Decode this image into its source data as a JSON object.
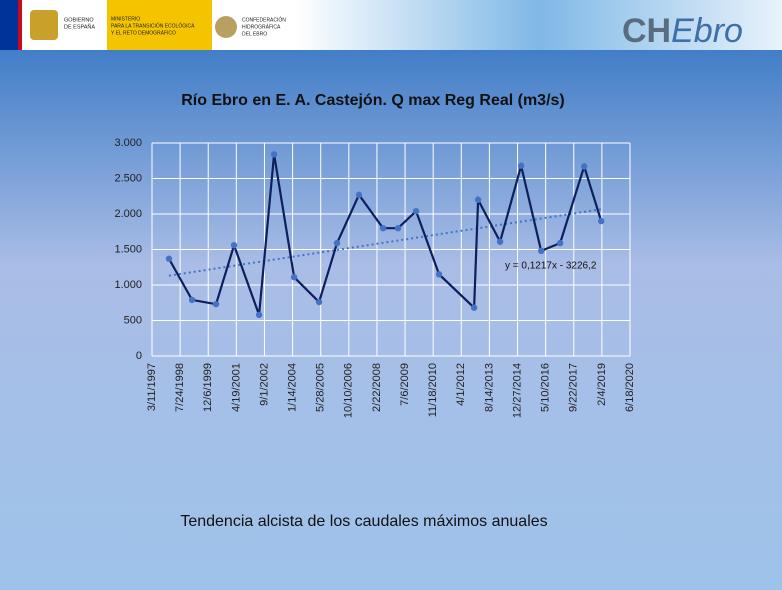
{
  "header": {
    "gov": [
      "GOBIERNO",
      "DE ESPAÑA"
    ],
    "ministry": [
      "MINISTERIO",
      "PARA LA TRANSICIÓN ECOLÓGICA",
      "Y EL RETO DEMOGRÁFICO"
    ],
    "confed": [
      "CONFEDERACIÓN",
      "HIDROGRÁFICA",
      "DEL EBRO"
    ],
    "brand_a": "CH",
    "brand_b": "Ebro"
  },
  "caption": "Tendencia alcista de los caudales máximos anuales",
  "chart_data": {
    "type": "line",
    "title": "Río Ebro en E. A. Castejón. Q max Reg Real (m3/s)",
    "series": [
      {
        "name": "Q max",
        "color": "#0d1f5c",
        "marker_color": "#4472c4",
        "x": [
          35802,
          36212,
          36639,
          36959,
          37404,
          37671,
          38027,
          38471,
          38790,
          39181,
          39609,
          39875,
          40196,
          40605,
          41228,
          41299,
          41690,
          42064,
          42420,
          42758,
          43185,
          43488
        ],
        "values": [
          1370,
          790,
          730,
          1560,
          580,
          2840,
          1110,
          760,
          1590,
          2270,
          1800,
          1800,
          2040,
          1150,
          680,
          2200,
          1610,
          2680,
          1480,
          1590,
          2670,
          1900
        ]
      }
    ],
    "trendline": {
      "label": "y = 0,1217x - 3226,2",
      "slope": 0.1217,
      "intercept": -3226.2,
      "x": [
        35802,
        43488
      ],
      "color": "#4472c4"
    },
    "xlim": [
      35500,
      44000
    ],
    "xticks": [
      {
        "value": 35500,
        "label": "3/11/1997"
      },
      {
        "value": 36000,
        "label": "7/24/1998"
      },
      {
        "value": 36500,
        "label": "12/6/1999"
      },
      {
        "value": 37000,
        "label": "4/19/2001"
      },
      {
        "value": 37500,
        "label": "9/1/2002"
      },
      {
        "value": 38000,
        "label": "1/14/2004"
      },
      {
        "value": 38500,
        "label": "5/28/2005"
      },
      {
        "value": 39000,
        "label": "10/10/2006"
      },
      {
        "value": 39500,
        "label": "2/22/2008"
      },
      {
        "value": 40000,
        "label": "7/6/2009"
      },
      {
        "value": 40500,
        "label": "11/18/2010"
      },
      {
        "value": 41000,
        "label": "4/1/2012"
      },
      {
        "value": 41500,
        "label": "8/14/2013"
      },
      {
        "value": 42000,
        "label": "12/27/2014"
      },
      {
        "value": 42500,
        "label": "5/10/2016"
      },
      {
        "value": 43000,
        "label": "9/22/2017"
      },
      {
        "value": 43500,
        "label": "2/4/2019"
      },
      {
        "value": 44000,
        "label": "6/18/2020"
      }
    ],
    "ylim": [
      0,
      3000
    ],
    "yticks": [
      0,
      {
        "value": 500,
        "label": "500"
      },
      {
        "value": 1000,
        "label": "1.000"
      },
      {
        "value": 1500,
        "label": "1.500"
      },
      {
        "value": 2000,
        "label": "2.000"
      },
      {
        "value": 2500,
        "label": "2.500"
      },
      {
        "value": 3000,
        "label": "3.000"
      }
    ],
    "grid": true
  }
}
